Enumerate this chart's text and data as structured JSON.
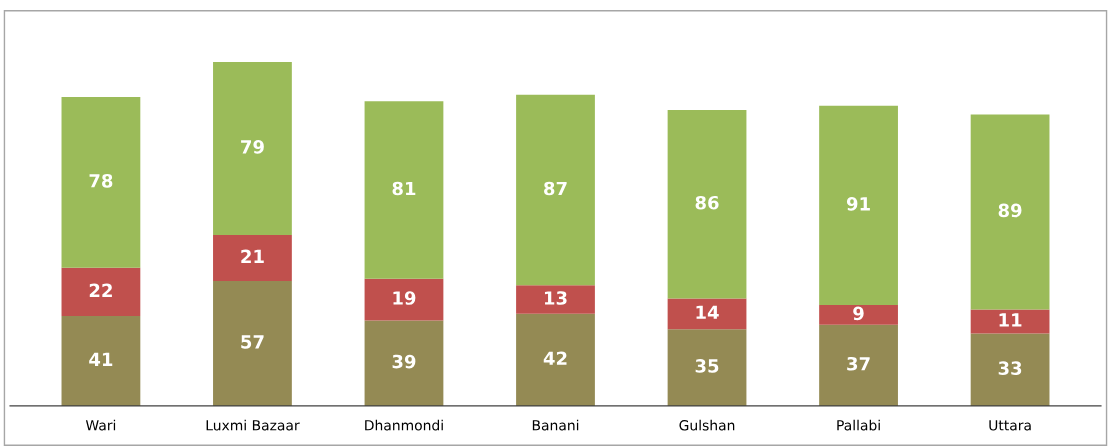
{
  "chart_data": {
    "type": "bar",
    "stacked": true,
    "data_labels": true,
    "categories": [
      "Wari",
      "Luxmi Bazaar",
      "Dhanmondi",
      "Banani",
      "Gulshan",
      "Pallabi",
      "Uttara"
    ],
    "series": [
      {
        "color": "#948a54",
        "values": [
          41,
          57,
          39,
          42,
          35,
          37,
          33
        ]
      },
      {
        "color": "#c0504d",
        "values": [
          22,
          21,
          19,
          13,
          14,
          9,
          11
        ]
      },
      {
        "color": "#9bbb59",
        "values": [
          78,
          79,
          81,
          87,
          86,
          91,
          89
        ]
      }
    ]
  }
}
